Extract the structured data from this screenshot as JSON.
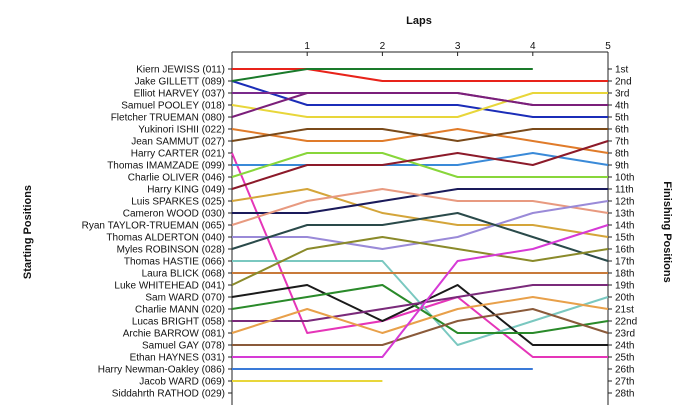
{
  "chart_data": {
    "type": "line",
    "title": "",
    "xlabel": "Laps",
    "ylabel_left": "Starting Positions",
    "ylabel_right": "Finishing Positions",
    "x": [
      0,
      1,
      2,
      3,
      4,
      5
    ],
    "x_tick_labels": [
      "1",
      "2",
      "3",
      "4",
      "5"
    ],
    "ylim": [
      1,
      28
    ],
    "grid": false,
    "drivers": [
      "Kiern JEWISS (011)",
      "Jake GILLETT (089)",
      "Elliot HARVEY (037)",
      "Samuel POOLEY (018)",
      "Fletcher TRUEMAN (080)",
      "Yukinori ISHII (022)",
      "Jean SAMMUT (027)",
      "Harry CARTER (021)",
      "Thomas IMAMZADE (099)",
      "Charlie OLIVER (046)",
      "Harry KING (049)",
      "Luis SPARKES (025)",
      "Cameron WOOD (030)",
      "Ryan TAYLOR-TRUEMAN (065)",
      "Thomas ALDERTON (040)",
      "Myles ROBINSON (028)",
      "Thomas HASTIE (066)",
      "Laura BLICK (068)",
      "Luke WHITEHEAD (041)",
      "Sam WARD (070)",
      "Charlie MANN (020)",
      "Lucas BRIGHT (058)",
      "Archie BARROW (081)",
      "Samuel GAY (078)",
      "Ethan HAYNES (031)",
      "Harry Newman-Oakley (086)",
      "Jacob WARD (069)",
      "Siddahrth RATHOD (029)"
    ],
    "finishing_labels": [
      "1st",
      "2nd",
      "3rd",
      "4th",
      "5th",
      "6th",
      "7th",
      "8th",
      "9th",
      "10th",
      "11th",
      "12th",
      "13th",
      "14th",
      "15th",
      "16th",
      "17th",
      "18th",
      "19th",
      "20th",
      "21st",
      "22nd",
      "23rd",
      "24th",
      "25th",
      "26th",
      "27th",
      "28th"
    ],
    "series": [
      {
        "color": "#e8231a",
        "positions": [
          1,
          1,
          2,
          2,
          2,
          2
        ]
      },
      {
        "color": "#1b2db8",
        "positions": [
          2,
          4,
          4,
          4,
          5,
          5
        ]
      },
      {
        "color": "#7a2a8c",
        "positions": [
          3,
          3,
          3,
          3,
          4,
          4
        ]
      },
      {
        "color": "#e8d63a",
        "positions": [
          4,
          5,
          5,
          5,
          3,
          3
        ]
      },
      {
        "color": "#7b1f7a",
        "positions": [
          5,
          3,
          3,
          3,
          4,
          4
        ]
      },
      {
        "color": "#e07b2a",
        "positions": [
          6,
          7,
          7,
          6,
          7,
          8
        ]
      },
      {
        "color": "#7a4a1a",
        "positions": [
          7,
          6,
          6,
          7,
          6,
          6
        ]
      },
      {
        "color": "#e535b8",
        "positions": [
          8,
          23,
          22,
          20,
          25,
          25
        ]
      },
      {
        "color": "#3a8ad8",
        "positions": [
          9,
          9,
          9,
          9,
          8,
          9
        ]
      },
      {
        "color": "#88d63a",
        "positions": [
          10,
          8,
          8,
          10,
          10,
          10
        ]
      },
      {
        "color": "#8c1a2a",
        "positions": [
          11,
          9,
          9,
          8,
          9,
          7
        ]
      },
      {
        "color": "#d4a53a",
        "positions": [
          12,
          11,
          13,
          14,
          14,
          15
        ]
      },
      {
        "color": "#1a1a5a",
        "positions": [
          13,
          13,
          12,
          11,
          11,
          11
        ]
      },
      {
        "color": "#e89a80",
        "positions": [
          14,
          12,
          11,
          12,
          12,
          13
        ]
      },
      {
        "color": "#9a8ad8",
        "positions": [
          15,
          15,
          16,
          15,
          13,
          12
        ]
      },
      {
        "color": "#2a4a4a",
        "positions": [
          16,
          14,
          14,
          13,
          15,
          17
        ]
      },
      {
        "color": "#7ac8c0",
        "positions": [
          17,
          17,
          17,
          24,
          22,
          20
        ]
      },
      {
        "color": "#c87a3a",
        "positions": [
          18,
          18,
          18,
          18,
          18,
          18
        ]
      },
      {
        "color": "#8a8a2a",
        "positions": [
          19,
          16,
          15,
          16,
          17,
          16
        ]
      },
      {
        "color": "#1a1a1a",
        "positions": [
          20,
          19,
          22,
          19,
          24,
          24
        ]
      },
      {
        "color": "#2a8a2a",
        "positions": [
          21,
          20,
          19,
          23,
          23,
          22
        ]
      },
      {
        "color": "#7a2a7a",
        "positions": [
          22,
          22,
          21,
          20,
          19,
          19
        ]
      },
      {
        "color": "#e8a04a",
        "positions": [
          23,
          21,
          23,
          21,
          20,
          21
        ]
      },
      {
        "color": "#8a5a3a",
        "positions": [
          24,
          24,
          24,
          22,
          21,
          23
        ]
      },
      {
        "color": "#d63ad6",
        "positions": [
          25,
          25,
          25,
          17,
          16,
          14
        ]
      },
      {
        "color": "#3a7ad8",
        "positions": [
          26,
          26,
          26,
          26,
          26
        ]
      },
      {
        "color": "#e8d63a",
        "positions": [
          27,
          27,
          27
        ]
      },
      {
        "color": "#1a7a2a",
        "positions": [
          2,
          1,
          1,
          1,
          1
        ]
      }
    ]
  }
}
